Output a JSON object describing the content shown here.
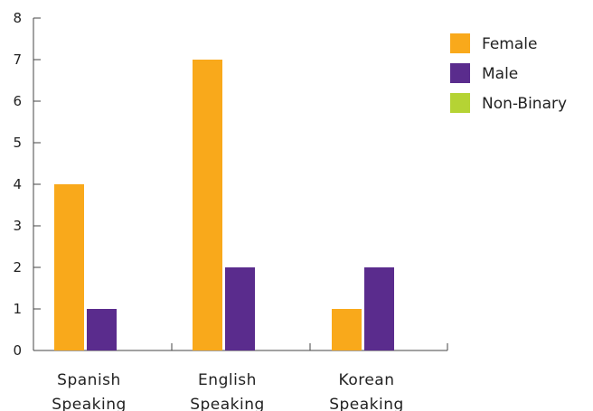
{
  "chart_data": {
    "type": "bar",
    "categories": [
      [
        "Spanish",
        "Speaking"
      ],
      [
        "English",
        "Speaking"
      ],
      [
        "Korean",
        "Speaking"
      ]
    ],
    "series": [
      {
        "name": "Female",
        "color": "#F9A91B",
        "values": [
          4,
          7,
          1
        ]
      },
      {
        "name": "Male",
        "color": "#5A2C8D",
        "values": [
          1,
          2,
          2
        ]
      },
      {
        "name": "Non-Binary",
        "color": "#B5D334",
        "values": [
          0,
          0,
          0
        ]
      }
    ],
    "yticks": [
      "0",
      "1",
      "2",
      "3",
      "4",
      "5",
      "6",
      "7",
      "8"
    ],
    "ylim": [
      0,
      8
    ],
    "title": "",
    "xlabel": "",
    "ylabel": "",
    "legend_position": "top-right",
    "grid": false
  }
}
